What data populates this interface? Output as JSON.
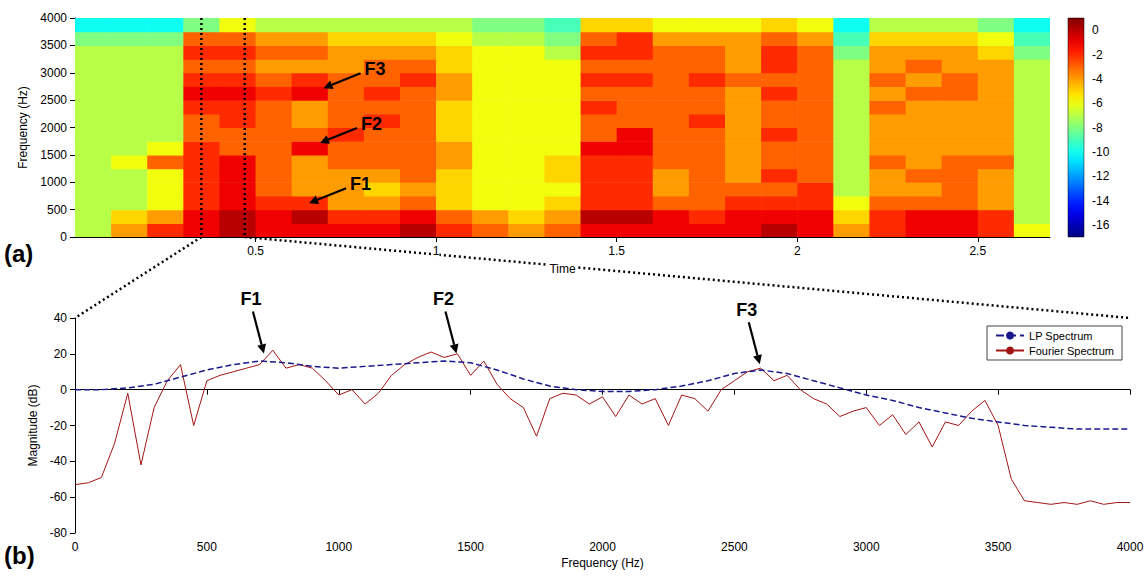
{
  "chart_data": [
    {
      "type": "heatmap",
      "panel": "(a)",
      "x_label": "Time",
      "y_label": "Frequency (Hz)",
      "xlim": [
        0,
        2.7
      ],
      "xticks": [
        0.5,
        1,
        1.5,
        2,
        2.5
      ],
      "ylim": [
        0,
        4000
      ],
      "yticks": [
        0,
        500,
        1000,
        1500,
        2000,
        2500,
        3000,
        3500,
        4000
      ],
      "grid": false,
      "time_edges": [
        0,
        0.1,
        0.2,
        0.3,
        0.4,
        0.5,
        0.6,
        0.7,
        0.8,
        0.9,
        1.0,
        1.1,
        1.2,
        1.3,
        1.4,
        1.5,
        1.6,
        1.7,
        1.8,
        1.9,
        2.0,
        2.1,
        2.2,
        2.3,
        2.4,
        2.5,
        2.6,
        2.7
      ],
      "frequency_edges": [
        0,
        250,
        500,
        750,
        1000,
        1250,
        1500,
        1750,
        2000,
        2250,
        2500,
        2750,
        3000,
        3250,
        3500,
        3750,
        4000
      ],
      "cells": [
        [
          -7,
          -7,
          -7,
          -7,
          -7,
          -7,
          -7,
          -7,
          -7,
          -7,
          -7,
          -7,
          -7,
          -7,
          -8,
          -10
        ],
        [
          -4,
          -5,
          -7,
          -7,
          -7,
          -6,
          -7,
          -7,
          -7,
          -7,
          -7,
          -7,
          -7,
          -7,
          -8,
          -10
        ],
        [
          -2,
          -4,
          -6,
          -6,
          -6,
          -3,
          -6,
          -7,
          -7,
          -7,
          -7,
          -7,
          -7,
          -7,
          -8,
          -10
        ],
        [
          -1,
          -1,
          -2,
          -2,
          -2,
          -2,
          -2,
          -3,
          -3,
          -2,
          -1,
          -2,
          -3,
          -2,
          -3,
          -8
        ],
        [
          0,
          0,
          -1,
          -1,
          -1,
          -1,
          -3,
          -3,
          -2,
          -2,
          -1,
          -2,
          -3,
          -2,
          -3,
          -6
        ],
        [
          -1,
          -1,
          -2,
          -3,
          -3,
          -3,
          -3,
          -3,
          -3,
          -3,
          -2,
          -3,
          -4,
          -3,
          -4,
          -7
        ],
        [
          -1,
          0,
          -2,
          -4,
          -4,
          -4,
          -1,
          -3,
          -4,
          -4,
          -1,
          -2,
          -4,
          -3,
          -4,
          -7
        ],
        [
          -1,
          -2,
          -4,
          -4,
          -4,
          -3,
          -3,
          -2,
          -3,
          -3,
          -3,
          -3,
          -4,
          -4,
          -5,
          -7
        ],
        [
          -1,
          -2,
          -4,
          -5,
          -4,
          -3,
          -3,
          -3,
          -2,
          -3,
          -2,
          -3,
          -3,
          -4,
          -5,
          -7
        ],
        [
          0,
          -1,
          -3,
          -4,
          -3,
          -3,
          -3,
          -3,
          -3,
          -3,
          -3,
          -2,
          -3,
          -4,
          -5,
          -7
        ],
        [
          -2,
          -3,
          -5,
          -5,
          -5,
          -4,
          -4,
          -5,
          -5,
          -5,
          -4,
          -4,
          -5,
          -5,
          -6,
          -7
        ],
        [
          -3,
          -4,
          -6,
          -6,
          -6,
          -6,
          -6,
          -6,
          -6,
          -6,
          -6,
          -6,
          -6,
          -6,
          -7,
          -8
        ],
        [
          -4,
          -5,
          -6,
          -6,
          -6,
          -6,
          -6,
          -6,
          -6,
          -6,
          -6,
          -6,
          -6,
          -6,
          -7,
          -8
        ],
        [
          -3,
          -4,
          -5,
          -6,
          -5,
          -5,
          -6,
          -6,
          -6,
          -6,
          -6,
          -6,
          -6,
          -7,
          -8,
          -9
        ],
        [
          -1,
          0,
          -2,
          -2,
          -2,
          -2,
          -1,
          -3,
          -3,
          -2,
          -3,
          -2,
          -3,
          -2,
          -3,
          -5
        ],
        [
          -1,
          0,
          -2,
          -2,
          -2,
          -2,
          -1,
          -1,
          -3,
          -3,
          -3,
          -2,
          -3,
          -2,
          -2,
          -5
        ],
        [
          -1,
          -1,
          -3,
          -4,
          -4,
          -3,
          -3,
          -3,
          -3,
          -3,
          -3,
          -3,
          -3,
          -3,
          -4,
          -6
        ],
        [
          -1,
          -2,
          -3,
          -3,
          -3,
          -3,
          -3,
          -3,
          -2,
          -3,
          -3,
          -2,
          -3,
          -3,
          -4,
          -6
        ],
        [
          -1,
          -1,
          -2,
          -3,
          -4,
          -4,
          -4,
          -4,
          -4,
          -4,
          -4,
          -3,
          -4,
          -4,
          -4,
          -6
        ],
        [
          0,
          -1,
          -2,
          -3,
          -2,
          -3,
          -3,
          -2,
          -3,
          -3,
          -2,
          -3,
          -2,
          -2,
          -3,
          -5
        ],
        [
          -1,
          -1,
          -2,
          -2,
          -3,
          -3,
          -3,
          -3,
          -3,
          -3,
          -3,
          -3,
          -3,
          -3,
          -4,
          -6
        ],
        [
          -4,
          -5,
          -6,
          -7,
          -7,
          -7,
          -7,
          -7,
          -7,
          -7,
          -7,
          -7,
          -7,
          -8,
          -9,
          -10
        ],
        [
          -2,
          -2,
          -3,
          -4,
          -4,
          -3,
          -4,
          -4,
          -4,
          -3,
          -4,
          -3,
          -4,
          -4,
          -5,
          -7
        ],
        [
          -1,
          -1,
          -3,
          -4,
          -3,
          -4,
          -4,
          -4,
          -4,
          -4,
          -3,
          -4,
          -3,
          -4,
          -5,
          -7
        ],
        [
          -1,
          -1,
          -3,
          -3,
          -3,
          -3,
          -4,
          -4,
          -4,
          -4,
          -3,
          -3,
          -4,
          -4,
          -5,
          -7
        ],
        [
          -2,
          -2,
          -4,
          -4,
          -4,
          -3,
          -4,
          -4,
          -4,
          -4,
          -4,
          -4,
          -4,
          -5,
          -6,
          -8
        ],
        [
          -6,
          -7,
          -7,
          -7,
          -7,
          -7,
          -7,
          -7,
          -7,
          -7,
          -7,
          -7,
          -7,
          -8,
          -9,
          -10
        ]
      ],
      "colorbar_lim": [
        -17,
        1
      ],
      "colorbar_ticks": [
        0,
        -2,
        -4,
        -6,
        -8,
        -10,
        -12,
        -14,
        -16
      ],
      "segment": [
        0.35,
        0.47
      ],
      "annotations": [
        {
          "text": "F3",
          "x": 0.68,
          "y": 2700
        },
        {
          "text": "F2",
          "x": 0.67,
          "y": 1700
        },
        {
          "text": "F1",
          "x": 0.64,
          "y": 600
        }
      ]
    },
    {
      "type": "line",
      "panel": "(b)",
      "x_label": "Frequency (Hz)",
      "y_label": "Magnitude (dB)",
      "xlim": [
        0,
        4000
      ],
      "xticks": [
        0,
        500,
        1000,
        1500,
        2000,
        2500,
        3000,
        3500,
        4000
      ],
      "ylim": [
        -80,
        40
      ],
      "yticks": [
        -80,
        -60,
        -40,
        -20,
        0,
        20,
        40
      ],
      "grid": false,
      "legend": "upper right",
      "series": [
        {
          "name": "LP Spectrum",
          "color": "#1a1a8c",
          "line_style": "dashed",
          "x": [
            0,
            100,
            200,
            300,
            400,
            500,
            600,
            700,
            800,
            900,
            1000,
            1100,
            1200,
            1300,
            1400,
            1500,
            1600,
            1700,
            1800,
            1900,
            2000,
            2100,
            2200,
            2300,
            2400,
            2500,
            2600,
            2700,
            2800,
            2900,
            3000,
            3100,
            3200,
            3300,
            3400,
            3500,
            3600,
            3700,
            3800,
            3900,
            4000
          ],
          "values": [
            0,
            0,
            1,
            3,
            7,
            11,
            14,
            16,
            15,
            13,
            12,
            13,
            14,
            15,
            16,
            15,
            11,
            6,
            2,
            0,
            -1,
            -1,
            0,
            2,
            5,
            9,
            11,
            9,
            5,
            1,
            -3,
            -6,
            -10,
            -13,
            -16,
            -18,
            -20,
            -21,
            -22,
            -22,
            -22
          ]
        },
        {
          "name": "Fourier Spectrum",
          "color": "#a31515",
          "line_style": "solid",
          "x": [
            0,
            50,
            100,
            150,
            200,
            250,
            300,
            350,
            400,
            450,
            500,
            550,
            600,
            650,
            700,
            750,
            800,
            850,
            900,
            950,
            1000,
            1050,
            1100,
            1150,
            1200,
            1250,
            1300,
            1350,
            1400,
            1450,
            1500,
            1550,
            1600,
            1650,
            1700,
            1750,
            1800,
            1850,
            1900,
            1950,
            2000,
            2050,
            2100,
            2150,
            2200,
            2250,
            2300,
            2350,
            2400,
            2450,
            2500,
            2550,
            2600,
            2650,
            2700,
            2750,
            2800,
            2850,
            2900,
            2950,
            3000,
            3050,
            3100,
            3150,
            3200,
            3250,
            3300,
            3350,
            3400,
            3450,
            3500,
            3550,
            3600,
            3650,
            3700,
            3750,
            3800,
            3850,
            3900,
            3950,
            4000
          ],
          "values": [
            -53,
            -52,
            -49,
            -30,
            -2,
            -42,
            -10,
            5,
            14,
            -20,
            5,
            8,
            10,
            12,
            14,
            22,
            12,
            14,
            12,
            5,
            -3,
            0,
            -8,
            -2,
            8,
            14,
            18,
            21,
            18,
            20,
            8,
            16,
            3,
            -5,
            -10,
            -26,
            -5,
            -2,
            -3,
            -8,
            -4,
            -15,
            -3,
            -8,
            -5,
            -20,
            -3,
            -5,
            -12,
            0,
            5,
            10,
            12,
            5,
            8,
            0,
            -5,
            -8,
            -15,
            -12,
            -10,
            -20,
            -14,
            -25,
            -18,
            -32,
            -18,
            -20,
            -12,
            -6,
            -20,
            -50,
            -62,
            -63,
            -64,
            -63,
            -64,
            -62,
            -64,
            -63,
            -63
          ]
        }
      ],
      "annotations": [
        {
          "text": "F1",
          "x": 720,
          "y": 18
        },
        {
          "text": "F2",
          "x": 1450,
          "y": 18
        },
        {
          "text": "F3",
          "x": 2600,
          "y": 12
        }
      ]
    }
  ]
}
